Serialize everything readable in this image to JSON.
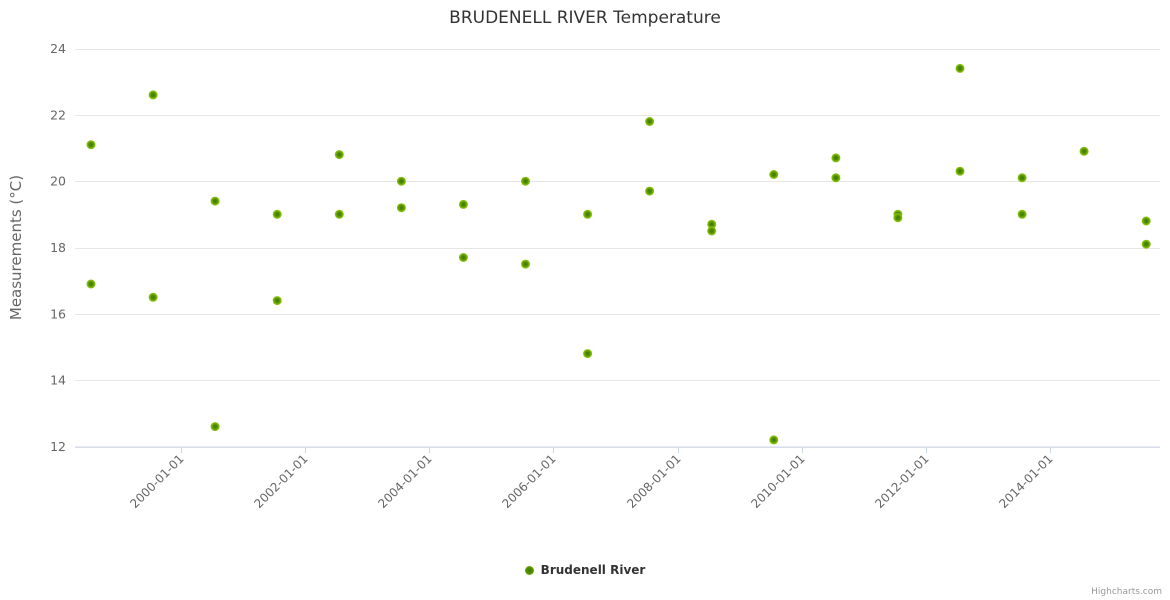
{
  "title": "BRUDENELL RIVER Temperature",
  "credit": "Highcharts.com",
  "legend": {
    "label": "Brudenell River"
  },
  "colors": {
    "grid": "#e6e6e6",
    "axis": "#ccd6eb",
    "title_text": "#333333",
    "axis_label_text": "#666666",
    "marker_outer": "#8cc41a",
    "marker_mid": "#7fb703",
    "marker_inner": "#3e7c02"
  },
  "chart_data": {
    "type": "scatter",
    "title": "BRUDENELL RIVER Temperature",
    "xlabel": "",
    "ylabel": "Measurements (°C)",
    "legend_position": "bottom-center",
    "grid": "horizontal",
    "x_axis": {
      "type": "datetime",
      "tick_years": [
        2000,
        2002,
        2004,
        2006,
        2008,
        2010,
        2012,
        2014
      ],
      "tick_labels": [
        "2000-01-01",
        "2002-01-01",
        "2004-01-01",
        "2006-01-01",
        "2008-01-01",
        "2010-01-01",
        "2012-01-01",
        "2014-01-01"
      ]
    },
    "y_axis": {
      "range": [
        12,
        24
      ],
      "ticks": [
        12,
        14,
        16,
        18,
        20,
        22,
        24
      ]
    },
    "series": [
      {
        "name": "Brudenell River",
        "color": "#7fb703",
        "points": [
          [
            1998,
            21.1
          ],
          [
            1998,
            16.9
          ],
          [
            1999,
            22.6
          ],
          [
            1999,
            16.5
          ],
          [
            2000,
            19.4
          ],
          [
            2000,
            12.6
          ],
          [
            2001,
            19.0
          ],
          [
            2001,
            16.4
          ],
          [
            2002,
            20.8
          ],
          [
            2002,
            19.0
          ],
          [
            2003,
            20.0
          ],
          [
            2003,
            19.2
          ],
          [
            2004,
            19.3
          ],
          [
            2004,
            17.7
          ],
          [
            2005,
            20.0
          ],
          [
            2005,
            17.5
          ],
          [
            2006,
            19.0
          ],
          [
            2006,
            14.8
          ],
          [
            2007,
            21.8
          ],
          [
            2007,
            19.7
          ],
          [
            2008,
            18.7
          ],
          [
            2008,
            18.5
          ],
          [
            2009,
            20.2
          ],
          [
            2009,
            12.2
          ],
          [
            2010,
            20.7
          ],
          [
            2010,
            20.1
          ],
          [
            2011,
            19.0
          ],
          [
            2011,
            18.9
          ],
          [
            2012,
            23.4
          ],
          [
            2012,
            20.3
          ],
          [
            2013,
            20.1
          ],
          [
            2013,
            19.0
          ],
          [
            2014,
            20.9
          ],
          [
            2015,
            18.8
          ],
          [
            2015,
            18.1
          ]
        ]
      }
    ]
  }
}
